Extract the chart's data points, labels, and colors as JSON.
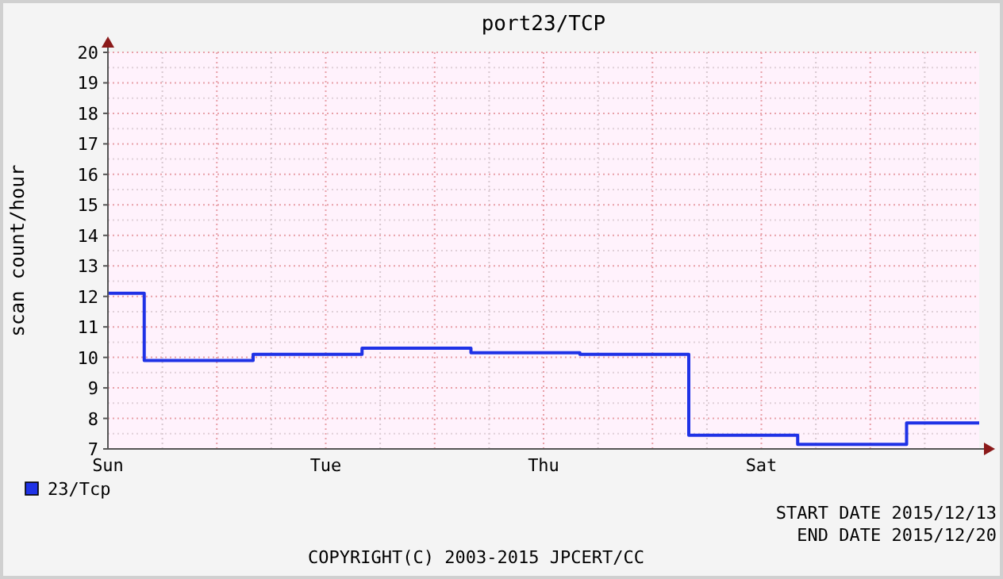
{
  "chart_data": {
    "type": "step",
    "title": "port23/TCP",
    "ylabel": "scan count/hour",
    "categories": [
      "Sun",
      null,
      null,
      null,
      null,
      null,
      null,
      null,
      null,
      null,
      null,
      null,
      "Tue",
      null,
      null,
      null,
      null,
      null,
      null,
      null,
      null,
      null,
      null,
      null,
      "Thu",
      null,
      null,
      null,
      null,
      null,
      null,
      null,
      null,
      null,
      null,
      null,
      "Sat",
      null,
      null,
      null,
      null,
      null,
      null,
      null,
      null,
      null,
      null,
      null,
      null
    ],
    "series": [
      {
        "name": "23/Tcp",
        "color": "#1f32e6",
        "values": [
          12.1,
          12.1,
          9.9,
          9.9,
          9.9,
          9.9,
          9.9,
          9.9,
          10.1,
          10.1,
          10.1,
          10.1,
          10.1,
          10.1,
          10.3,
          10.3,
          10.3,
          10.3,
          10.3,
          10.3,
          10.15,
          10.15,
          10.15,
          10.15,
          10.15,
          10.15,
          10.1,
          10.1,
          10.1,
          10.1,
          10.1,
          10.1,
          7.45,
          7.45,
          7.45,
          7.45,
          7.45,
          7.45,
          7.15,
          7.15,
          7.15,
          7.15,
          7.15,
          7.15,
          7.85,
          7.85,
          7.85,
          7.85,
          7.85
        ]
      }
    ],
    "ylim": [
      7,
      20
    ],
    "yticks": [
      7,
      8,
      9,
      10,
      11,
      12,
      13,
      14,
      15,
      16,
      17,
      18,
      19,
      20
    ],
    "grid": true,
    "legend": "bottom",
    "line_style": "solid",
    "marker": "none",
    "annotations": [
      "START DATE 2015/12/13",
      "END DATE 2015/12/20",
      "COPYRIGHT(C) 2003-2015 JPCERT/CC"
    ]
  }
}
